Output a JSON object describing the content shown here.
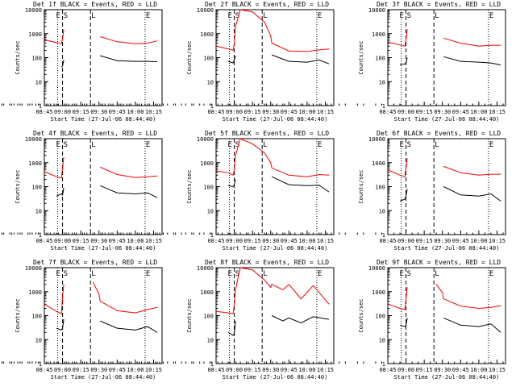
{
  "figure": {
    "ylabel": "Counts/sec",
    "xlabel": "Start Time (27-Jul-06 08:44:40)",
    "x_ticks": [
      "08:45",
      "09:00",
      "09:15",
      "09:30",
      "09:45",
      "10:00",
      "10:15"
    ],
    "y_ticks": [
      "1",
      "10",
      "100",
      "1000",
      "10000"
    ],
    "marker_labels": [
      "E",
      "S",
      "L",
      "E"
    ],
    "colors": {
      "events": "#000000",
      "lld": "#ff0000",
      "frame": "#000000",
      "background": "#ffffff"
    }
  },
  "chart_data": [
    {
      "type": "line",
      "title": "Det 1f BLACK = Events, RED = LLD",
      "x": [
        "08:45",
        "08:55",
        "08:59",
        "09:00",
        "09:01",
        "09:05",
        "09:15",
        "09:25",
        "09:30",
        "09:31",
        "09:45",
        "10:00",
        "10:10",
        "10:18"
      ],
      "series": [
        {
          "name": "Events",
          "values": [
            null,
            null,
            40,
            45,
            80,
            null,
            null,
            null,
            null,
            120,
            75,
            70,
            70,
            68
          ]
        },
        {
          "name": "LLD",
          "values": [
            550,
            430,
            380,
            600,
            1500,
            null,
            null,
            null,
            null,
            750,
            460,
            380,
            400,
            500
          ]
        }
      ],
      "xlim": [
        "08:45",
        "10:22"
      ],
      "ylim": [
        1,
        10000
      ],
      "y_scale": "log"
    },
    {
      "type": "line",
      "title": "Det 2f BLACK = Events, RED = LLD",
      "x": [
        "08:45",
        "08:55",
        "08:59",
        "09:00",
        "09:01",
        "09:05",
        "09:15",
        "09:25",
        "09:30",
        "09:31",
        "09:45",
        "10:00",
        "10:10",
        "10:18"
      ],
      "series": [
        {
          "name": "Events",
          "values": [
            null,
            70,
            60,
            80,
            120,
            null,
            null,
            null,
            null,
            130,
            70,
            65,
            80,
            55
          ]
        },
        {
          "name": "LLD",
          "values": [
            300,
            230,
            200,
            400,
            2000,
            12000,
            8000,
            3000,
            800,
            400,
            190,
            180,
            210,
            230
          ]
        }
      ],
      "xlim": [
        "08:45",
        "10:22"
      ],
      "ylim": [
        1,
        10000
      ],
      "y_scale": "log"
    },
    {
      "type": "line",
      "title": "Det 3f BLACK = Events, RED = LLD",
      "x": [
        "08:45",
        "08:55",
        "08:59",
        "09:00",
        "09:01",
        "09:05",
        "09:15",
        "09:25",
        "09:30",
        "09:31",
        "09:45",
        "10:00",
        "10:10",
        "10:18"
      ],
      "series": [
        {
          "name": "Events",
          "values": [
            null,
            50,
            55,
            60,
            100,
            null,
            null,
            null,
            null,
            110,
            70,
            65,
            60,
            50
          ]
        },
        {
          "name": "LLD",
          "values": [
            450,
            340,
            300,
            550,
            1500,
            null,
            null,
            null,
            null,
            650,
            400,
            300,
            330,
            330
          ]
        }
      ],
      "xlim": [
        "08:45",
        "10:22"
      ],
      "ylim": [
        1,
        10000
      ],
      "y_scale": "log"
    },
    {
      "type": "line",
      "title": "Det 4f BLACK = Events, RED = LLD",
      "x": [
        "08:45",
        "08:55",
        "08:59",
        "09:00",
        "09:01",
        "09:05",
        "09:15",
        "09:25",
        "09:30",
        "09:31",
        "09:45",
        "10:00",
        "10:10",
        "10:18"
      ],
      "series": [
        {
          "name": "Events",
          "values": [
            null,
            40,
            50,
            45,
            90,
            null,
            null,
            null,
            null,
            110,
            55,
            50,
            55,
            35
          ]
        },
        {
          "name": "LLD",
          "values": [
            420,
            260,
            230,
            600,
            1700,
            null,
            null,
            null,
            null,
            650,
            320,
            240,
            260,
            280
          ]
        }
      ],
      "xlim": [
        "08:45",
        "10:22"
      ],
      "ylim": [
        1,
        10000
      ],
      "y_scale": "log"
    },
    {
      "type": "line",
      "title": "Det 5f BLACK = Events, RED = LLD",
      "x": [
        "08:45",
        "08:55",
        "08:59",
        "09:00",
        "09:01",
        "09:05",
        "09:15",
        "09:25",
        "09:30",
        "09:31",
        "09:45",
        "10:00",
        "10:10",
        "10:18"
      ],
      "series": [
        {
          "name": "Events",
          "values": [
            null,
            110,
            100,
            120,
            200,
            null,
            null,
            null,
            null,
            260,
            120,
            110,
            115,
            60
          ]
        },
        {
          "name": "LLD",
          "values": [
            450,
            380,
            300,
            500,
            2000,
            10000,
            6000,
            2500,
            1000,
            600,
            300,
            260,
            320,
            300
          ]
        }
      ],
      "xlim": [
        "08:45",
        "10:22"
      ],
      "ylim": [
        1,
        10000
      ],
      "y_scale": "log"
    },
    {
      "type": "line",
      "title": "Det 6f BLACK = Events, RED = LLD",
      "x": [
        "08:45",
        "08:55",
        "08:59",
        "09:00",
        "09:01",
        "09:05",
        "09:15",
        "09:25",
        "09:30",
        "09:31",
        "09:45",
        "10:00",
        "10:10",
        "10:18"
      ],
      "series": [
        {
          "name": "Events",
          "values": [
            null,
            25,
            30,
            40,
            80,
            null,
            null,
            null,
            null,
            100,
            45,
            40,
            50,
            25
          ]
        },
        {
          "name": "LLD",
          "values": [
            500,
            300,
            260,
            600,
            1500,
            null,
            null,
            null,
            null,
            700,
            380,
            300,
            330,
            330
          ]
        }
      ],
      "xlim": [
        "08:45",
        "10:22"
      ],
      "ylim": [
        1,
        10000
      ],
      "y_scale": "log"
    },
    {
      "type": "line",
      "title": "Det 7f BLACK = Events, RED = LLD",
      "x": [
        "08:45",
        "08:55",
        "08:59",
        "09:00",
        "09:01",
        "09:05",
        "09:15",
        "09:25",
        "09:30",
        "09:31",
        "09:45",
        "10:00",
        "10:10",
        "10:18"
      ],
      "series": [
        {
          "name": "Events",
          "values": [
            null,
            30,
            25,
            30,
            70,
            null,
            null,
            null,
            null,
            60,
            30,
            25,
            35,
            20
          ]
        },
        {
          "name": "LLD",
          "values": [
            300,
            150,
            120,
            600,
            2000,
            null,
            null,
            2500,
            800,
            400,
            160,
            130,
            180,
            220
          ]
        }
      ],
      "xlim": [
        "08:45",
        "10:22"
      ],
      "ylim": [
        1,
        10000
      ],
      "y_scale": "log"
    },
    {
      "type": "line",
      "title": "Det 8f BLACK = Events, RED = LLD",
      "x": [
        "08:45",
        "08:55",
        "08:59",
        "09:00",
        "09:01",
        "09:05",
        "09:15",
        "09:25",
        "09:30",
        "09:31",
        "09:40",
        "09:45",
        "09:55",
        "10:05",
        "10:18"
      ],
      "series": [
        {
          "name": "Events",
          "values": [
            null,
            20,
            15,
            18,
            60,
            null,
            null,
            null,
            null,
            100,
            60,
            80,
            50,
            90,
            70
          ]
        },
        {
          "name": "LLD",
          "values": [
            150,
            130,
            120,
            300,
            1200,
            12000,
            8000,
            3000,
            1500,
            2000,
            1200,
            2000,
            500,
            1800,
            300
          ]
        }
      ],
      "xlim": [
        "08:45",
        "10:22"
      ],
      "ylim": [
        1,
        10000
      ],
      "y_scale": "log"
    },
    {
      "type": "line",
      "title": "Det 9f BLACK = Events, RED = LLD",
      "x": [
        "08:45",
        "08:55",
        "08:59",
        "09:00",
        "09:01",
        "09:05",
        "09:15",
        "09:25",
        "09:30",
        "09:31",
        "09:45",
        "10:00",
        "10:10",
        "10:18"
      ],
      "series": [
        {
          "name": "Events",
          "values": [
            null,
            40,
            35,
            40,
            80,
            null,
            null,
            null,
            null,
            80,
            40,
            35,
            45,
            20
          ]
        },
        {
          "name": "LLD",
          "values": [
            300,
            200,
            180,
            500,
            1500,
            null,
            null,
            2000,
            900,
            500,
            250,
            200,
            220,
            260
          ]
        }
      ],
      "xlim": [
        "08:45",
        "10:22"
      ],
      "ylim": [
        1,
        10000
      ],
      "y_scale": "log"
    }
  ]
}
